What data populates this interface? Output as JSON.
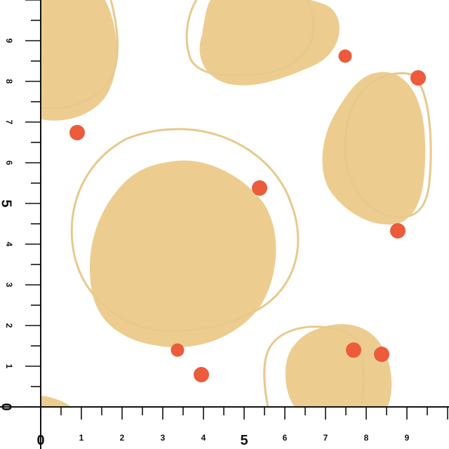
{
  "colors": {
    "background": "#ffffff",
    "blob_fill": "#edcd8f",
    "outline_stroke": "#e8c98d",
    "dot_fill": "#ec5b3c",
    "ruler": "#111111"
  },
  "ruler": {
    "x_labels": [
      "0",
      "1",
      "2",
      "3",
      "4",
      "5",
      "6",
      "7",
      "8",
      "9"
    ],
    "y_labels": [
      "0",
      "1",
      "2",
      "3",
      "4",
      "5",
      "6",
      "7",
      "8",
      "9"
    ]
  }
}
